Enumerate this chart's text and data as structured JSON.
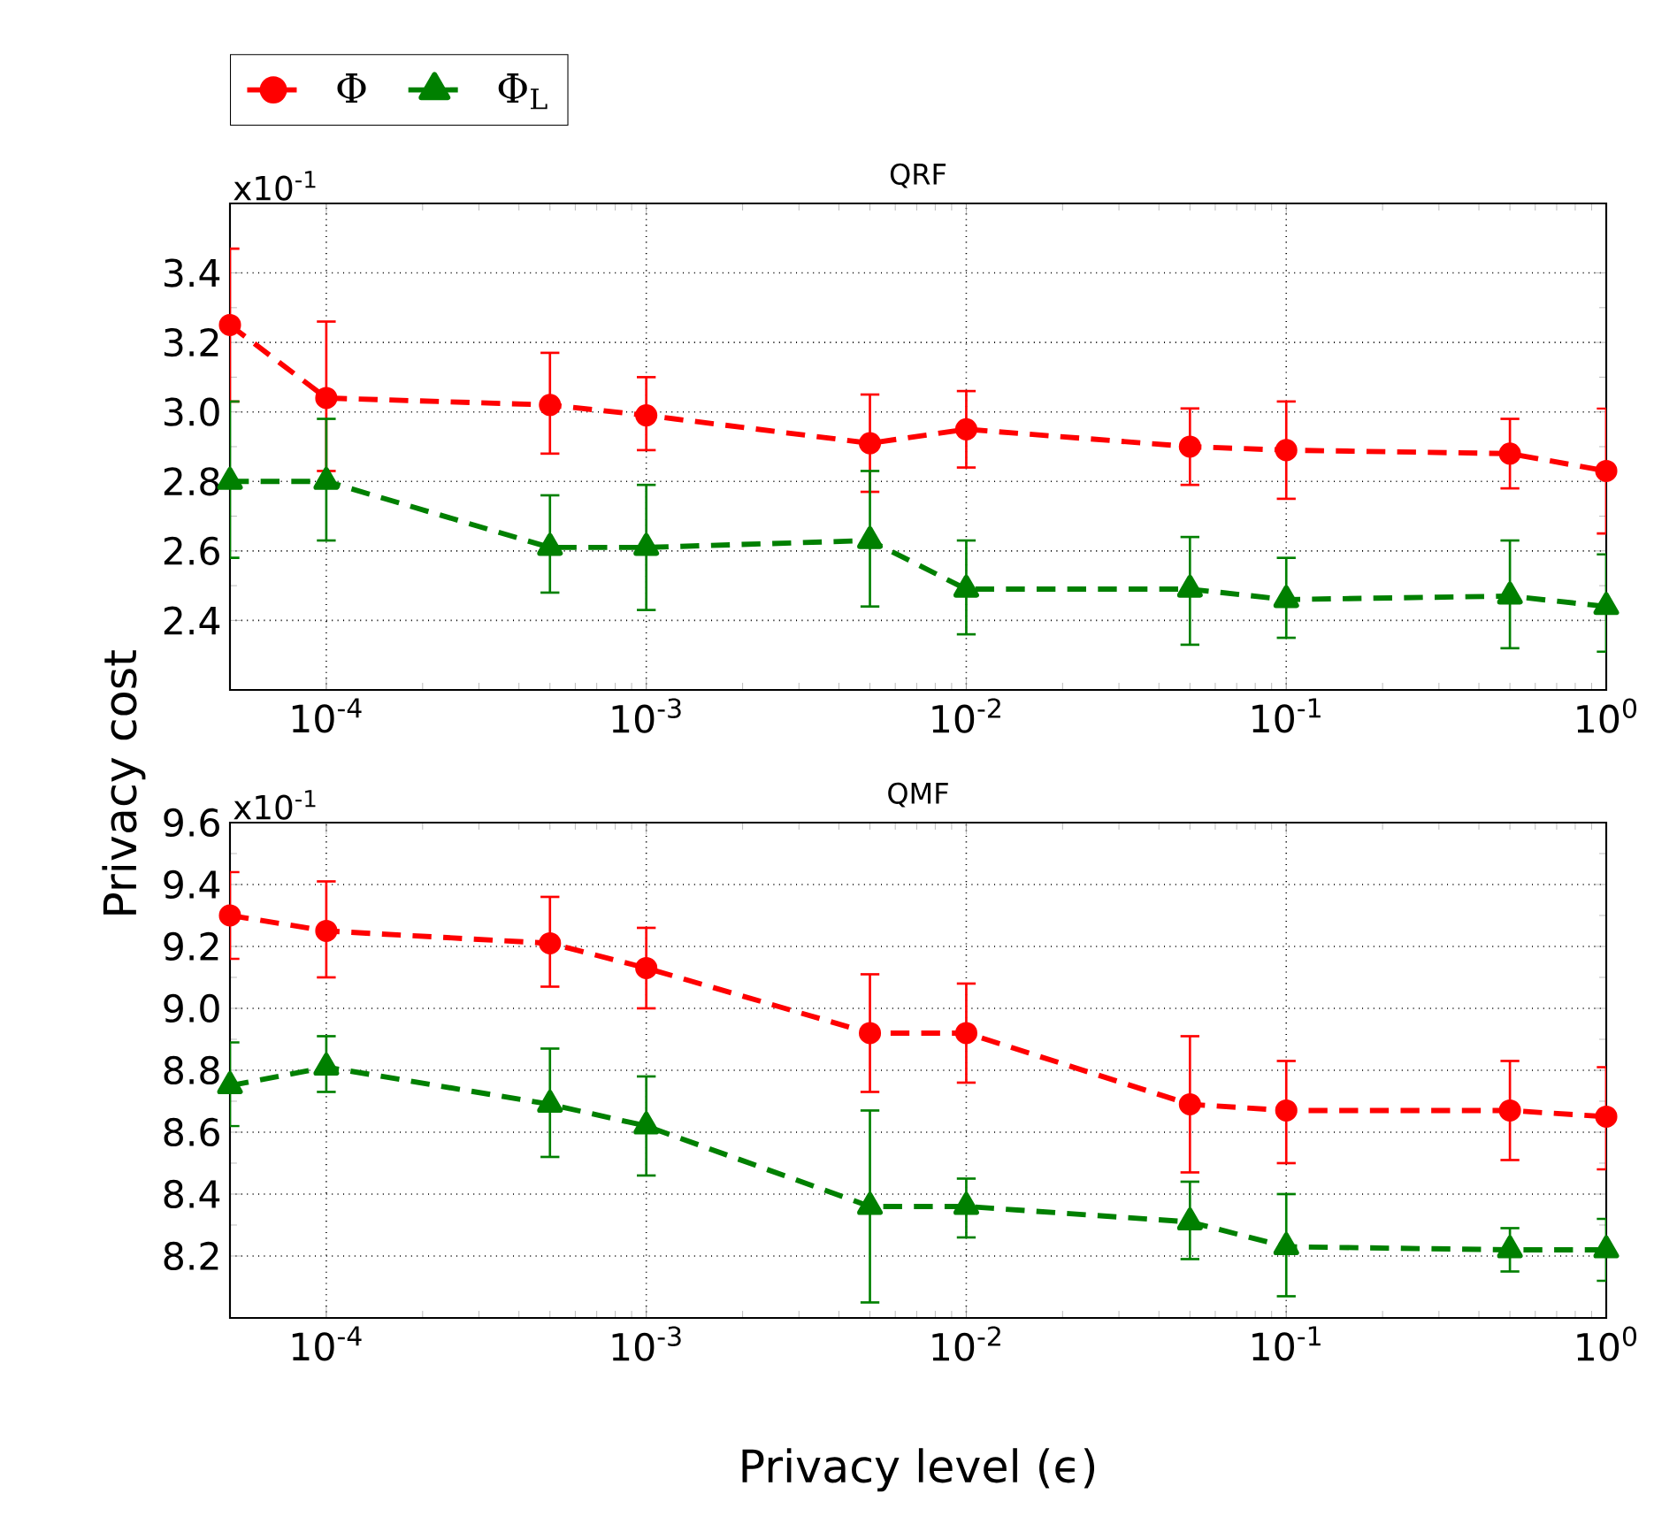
{
  "chart_data": [
    {
      "type": "line",
      "title": "QRF",
      "ylabel": "Privacy cost",
      "log": "x",
      "grid": true,
      "legend": "top left",
      "line_style": "dashed",
      "annotations": [
        "x10$^{-1}$"
      ],
      "x": [
        5e-05,
        0.0001,
        0.0005,
        0.001,
        0.005,
        0.01,
        0.05,
        0.1,
        0.5,
        1
      ],
      "xlim": [
        5e-05,
        1
      ],
      "xticks": [
        {
          "value": 0.0001,
          "label": "10$^{-4}$"
        },
        {
          "value": 0.001,
          "label": "10$^{-3}$"
        },
        {
          "value": 0.01,
          "label": "10$^{-2}$"
        },
        {
          "value": 0.1,
          "label": "10$^{-1}$"
        },
        {
          "value": 1,
          "label": "10$^{0}$"
        }
      ],
      "ylim": [
        2.2,
        3.6
      ],
      "yticks": [
        2.4,
        2.6,
        2.8,
        {
          "value": 3,
          "label": "3.0"
        },
        3.2,
        3.4
      ],
      "series": [
        {
          "name": "Φ",
          "color": "#ff0000",
          "marker": "circle",
          "values": [
            3.25,
            3.04,
            3.02,
            2.99,
            2.91,
            2.95,
            2.9,
            2.89,
            2.88,
            2.83
          ],
          "errors": [
            [
              3.03,
              3.47
            ],
            [
              2.83,
              3.26
            ],
            [
              2.88,
              3.17
            ],
            [
              2.89,
              3.1
            ],
            [
              2.77,
              3.05
            ],
            [
              2.84,
              3.06
            ],
            [
              2.79,
              3.01
            ],
            [
              2.75,
              3.03
            ],
            [
              2.78,
              2.98
            ],
            [
              2.65,
              3.01
            ]
          ]
        },
        {
          "name": "Φ$_{L}$",
          "color": "#008000",
          "marker": "triangle",
          "values": [
            2.8,
            2.8,
            2.61,
            2.61,
            2.63,
            2.49,
            2.49,
            2.46,
            2.47,
            2.44
          ],
          "errors": [
            [
              2.58,
              3.03
            ],
            [
              2.63,
              2.98
            ],
            [
              2.48,
              2.76
            ],
            [
              2.43,
              2.79
            ],
            [
              2.44,
              2.83
            ],
            [
              2.36,
              2.63
            ],
            [
              2.33,
              2.64
            ],
            [
              2.35,
              2.58
            ],
            [
              2.32,
              2.63
            ],
            [
              2.31,
              2.59
            ]
          ]
        }
      ]
    },
    {
      "type": "line",
      "title": "QMF",
      "xlabel": "Privacy level (ϵ)",
      "log": "x",
      "grid": true,
      "line_style": "dashed",
      "annotations": [
        "x10$^{-1}$"
      ],
      "x": [
        5e-05,
        0.0001,
        0.0005,
        0.001,
        0.005,
        0.01,
        0.05,
        0.1,
        0.5,
        1
      ],
      "xlim": [
        5e-05,
        1
      ],
      "xticks": [
        {
          "value": 0.0001,
          "label": "10$^{-4}$"
        },
        {
          "value": 0.001,
          "label": "10$^{-3}$"
        },
        {
          "value": 0.01,
          "label": "10$^{-2}$"
        },
        {
          "value": 0.1,
          "label": "10$^{-1}$"
        },
        {
          "value": 1,
          "label": "10$^{0}$"
        }
      ],
      "ylim": [
        8.0,
        9.6
      ],
      "yticks": [
        8.2,
        8.4,
        8.6,
        8.8,
        {
          "value": 9,
          "label": "9.0"
        },
        9.2,
        9.4,
        9.6
      ],
      "series": [
        {
          "color": "#ff0000",
          "marker": "circle",
          "values": [
            9.3,
            9.25,
            9.21,
            9.13,
            8.92,
            8.92,
            8.69,
            8.67,
            8.67,
            8.65
          ],
          "errors": [
            [
              9.16,
              9.44
            ],
            [
              9.1,
              9.41
            ],
            [
              9.07,
              9.36
            ],
            [
              9.0,
              9.26
            ],
            [
              8.73,
              9.11
            ],
            [
              8.76,
              9.08
            ],
            [
              8.47,
              8.91
            ],
            [
              8.5,
              8.83
            ],
            [
              8.51,
              8.83
            ],
            [
              8.48,
              8.81
            ]
          ]
        },
        {
          "color": "#008000",
          "marker": "triangle",
          "values": [
            8.75,
            8.81,
            8.69,
            8.62,
            8.36,
            8.36,
            8.31,
            8.23,
            8.22,
            8.22
          ],
          "errors": [
            [
              8.62,
              8.89
            ],
            [
              8.73,
              8.91
            ],
            [
              8.52,
              8.87
            ],
            [
              8.46,
              8.78
            ],
            [
              8.05,
              8.67
            ],
            [
              8.26,
              8.45
            ],
            [
              8.19,
              8.44
            ],
            [
              8.07,
              8.4
            ],
            [
              8.15,
              8.29
            ],
            [
              8.12,
              8.32
            ]
          ]
        }
      ]
    }
  ]
}
